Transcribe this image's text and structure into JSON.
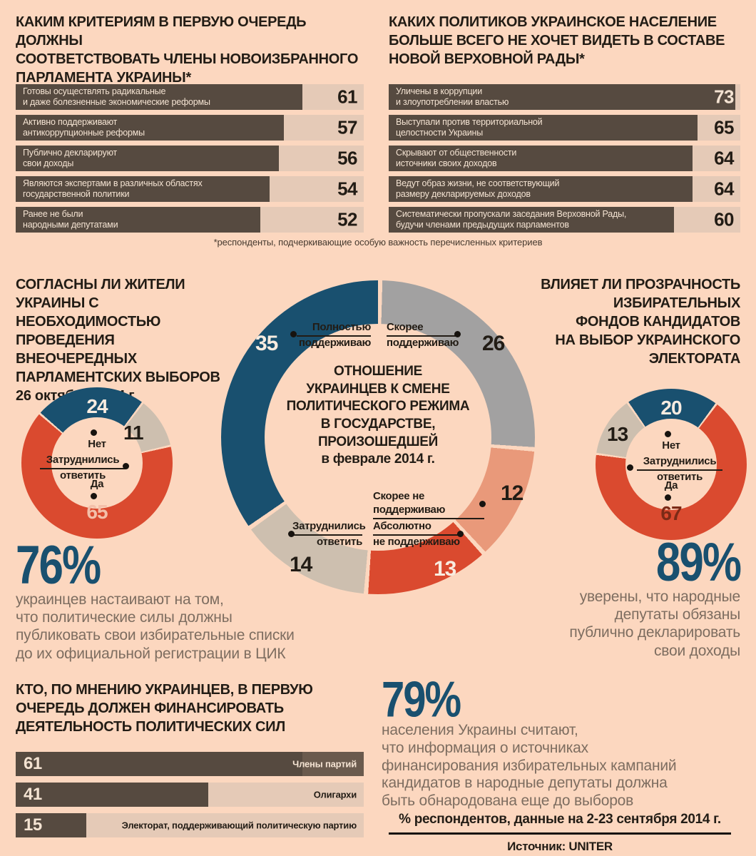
{
  "colors": {
    "background": "#fcd7bf",
    "bar_fill": "#564a40",
    "bar_track": "#e5cab7",
    "bar_remainder_dark": "#6a5a4d",
    "cream": "#f4e3d2",
    "text_dark": "#221c15",
    "blue": "#19506f",
    "red": "#da4a2f",
    "salmon": "#e9997a",
    "beige": "#cdbfaf",
    "gray": "#a2a1a1",
    "body_text": "#7d6d60",
    "pale_pink_num": "#f3bfa9",
    "maroon_num": "#7c2a16"
  },
  "chart_data": [
    {
      "type": "bar",
      "title": "КАКИМ КРИТЕРИЯМ В ПЕРВУЮ ОЧЕРЕДЬ ДОЛЖНЫ СООТВЕТСТВОВАТЬ ЧЛЕНЫ НОВОИЗБРАННОГО ПАРЛАМЕНТА УКРАИНЫ*",
      "categories": [
        "Готовы осуществлять радикальные и даже болезненные экономические реформы",
        "Активно поддерживают антикоррупционные реформы",
        "Публично декларируют свои доходы",
        "Являются экспертами в различных областях государственной политики",
        "Ранее не были народными депутатами"
      ],
      "values": [
        61,
        57,
        56,
        54,
        52
      ],
      "xlim": [
        0,
        74
      ],
      "unit": "% респондентов"
    },
    {
      "type": "bar",
      "title": "КАКИХ ПОЛИТИКОВ УКРАИНСКОЕ НАСЕЛЕНИЕ БОЛЬШЕ ВСЕГО НЕ ХОЧЕТ ВИДЕТЬ В СОСТАВЕ НОВОЙ ВЕРХОВНОЙ РАДЫ*",
      "categories": [
        "Уличены в коррупции и злоупотреблении властью",
        "Выступали против территориальной целостности Украины",
        "Скрывают от общественности источники своих доходов",
        "Ведут образ жизни, не соответствующий размеру декларируемых доходов",
        "Систематически пропускали заседания Верховной Рады, будучи членами предыдущих парламентов"
      ],
      "values": [
        73,
        65,
        64,
        64,
        60
      ],
      "xlim": [
        0,
        74
      ],
      "unit": "% респондентов"
    },
    {
      "type": "pie",
      "title": "СОГЛАСНЫ ЛИ ЖИТЕЛИ УКРАИНЫ С НЕОБХОДИМОСТЬЮ ПРОВЕДЕНИЯ ВНЕОЧЕРЕДНЫХ ПАРЛАМЕНТСКИХ ВЫБОРОВ 26 октября 2014 г.",
      "labels": [
        "Нет",
        "Затруднились ответить",
        "Да"
      ],
      "values": [
        24,
        11,
        65
      ]
    },
    {
      "type": "pie",
      "title": "ОТНОШЕНИЕ УКРАИНЦЕВ К СМЕНЕ ПОЛИТИЧЕСКОГО РЕЖИМА В ГОСУДАРСТВЕ, ПРОИЗОШЕДШЕЙ в феврале 2014 г.",
      "labels": [
        "Скорее поддерживаю",
        "Скорее не поддерживаю",
        "Абсолютно не поддерживаю",
        "Затруднились ответить",
        "Полностью поддерживаю"
      ],
      "values": [
        26,
        12,
        13,
        14,
        35
      ]
    },
    {
      "type": "pie",
      "title": "ВЛИЯЕТ ЛИ ПРОЗРАЧНОСТЬ ИЗБИРАТЕЛЬНЫХ ФОНДОВ КАНДИДАТОВ НА ВЫБОР УКРАИНСКОГО ЭЛЕКТОРАТА",
      "labels": [
        "Нет",
        "Да",
        "Затруднились ответить"
      ],
      "values": [
        20,
        67,
        13
      ]
    },
    {
      "type": "bar",
      "title": "КТО, ПО МНЕНИЮ УКРАИНЦЕВ, В ПЕРВУЮ ОЧЕРЕДЬ ДОЛЖЕН ФИНАНСИРОВАТЬ ДЕЯТЕЛЬНОСТЬ ПОЛИТИЧЕСКИХ СИЛ",
      "categories": [
        "Члены партий",
        "Олигархи",
        "Электорат, поддерживающий политическую партию"
      ],
      "values": [
        61,
        41,
        15
      ],
      "xlim": [
        0,
        74
      ],
      "unit": "% респондентов"
    }
  ],
  "top_left_chart": {
    "title_lines": [
      "КАКИМ КРИТЕРИЯМ В ПЕРВУЮ ОЧЕРЕДЬ ДОЛЖНЫ",
      "СООТВЕТСТВОВАТЬ ЧЛЕНЫ НОВОИЗБРАННОГО",
      "ПАРЛАМЕНТА УКРАИНЫ*"
    ],
    "max": 74,
    "variant": "top",
    "bars": [
      {
        "lines": [
          "Готовы осуществлять радикальные",
          "и даже болезненные экономические реформы"
        ],
        "value": 61
      },
      {
        "lines": [
          "Активно поддерживают",
          "антикоррупционные реформы"
        ],
        "value": 57
      },
      {
        "lines": [
          "Публично декларируют",
          "свои доходы"
        ],
        "value": 56
      },
      {
        "lines": [
          "Являются экспертами в различных областях",
          "государственной политики"
        ],
        "value": 54
      },
      {
        "lines": [
          "Ранее не были",
          "народными депутатами"
        ],
        "value": 52
      }
    ]
  },
  "top_right_chart": {
    "title_lines": [
      "КАКИХ ПОЛИТИКОВ УКРАИНСКОЕ НАСЕЛЕНИЕ",
      "БОЛЬШЕ ВСЕГО НЕ ХОЧЕТ ВИДЕТЬ В СОСТАВЕ",
      "НОВОЙ ВЕРХОВНОЙ РАДЫ*"
    ],
    "max": 74,
    "variant": "top",
    "bars": [
      {
        "lines": [
          "Уличены в коррупции",
          "и злоупотреблении властью"
        ],
        "value": 73
      },
      {
        "lines": [
          "Выступали против территориальной",
          "целостности Украины"
        ],
        "value": 65
      },
      {
        "lines": [
          "Скрывают от общественности",
          "источники своих доходов"
        ],
        "value": 64
      },
      {
        "lines": [
          "Ведут образ жизни, не соответствующий",
          "размеру декларируемых доходов"
        ],
        "value": 64
      },
      {
        "lines": [
          "Систематически пропускали заседания Верховной Рады,",
          "будучи членами предыдущих парламентов"
        ],
        "value": 60
      }
    ]
  },
  "criteria_footnote": "*респонденты, подчеркивающие особую важность перечисленных критериев",
  "left_donut": {
    "title_lines": [
      "СОГЛАСНЫ ЛИ ЖИТЕЛИ",
      "УКРАИНЫ С НЕОБХОДИМОСТЬЮ",
      "ПРОВЕДЕНИЯ ВНЕОЧЕРЕДНЫХ",
      "ПАРЛАМЕНТСКИХ ВЫБОРОВ"
    ],
    "date": "26 октября 2014 г.",
    "start": 310,
    "segments": [
      {
        "label": "Нет",
        "value": 24,
        "color": "#19506f"
      },
      {
        "label": "Затруднились ответить",
        "label_lines": [
          "Затруднились",
          "ответить"
        ],
        "value": 11,
        "color": "#cdbfaf"
      },
      {
        "label": "Да",
        "value": 65,
        "color": "#da4a2f"
      }
    ]
  },
  "center_donut": {
    "start": 0,
    "title_lines": [
      "ОТНОШЕНИЕ",
      "УКРАИНЦЕВ К СМЕНЕ",
      "ПОЛИТИЧЕСКОГО РЕЖИМА",
      "В ГОСУДАРСТВЕ,",
      "ПРОИЗОШЕДШЕЙ",
      "в феврале 2014 г."
    ],
    "segments": [
      {
        "label": "Скорее поддерживаю",
        "label_lines": [
          "Скорее",
          "поддерживаю"
        ],
        "value": 26,
        "color": "#a2a1a1"
      },
      {
        "label": "Скорее не поддерживаю",
        "label_lines": [
          "Скорее не поддерживаю"
        ],
        "value": 12,
        "color": "#e9997a"
      },
      {
        "label": "Абсолютно не поддерживаю",
        "label_lines": [
          "Абсолютно",
          "не поддерживаю"
        ],
        "value": 13,
        "color": "#da4a2f"
      },
      {
        "label": "Затруднились ответить",
        "label_lines": [
          "Затруднились",
          "ответить"
        ],
        "value": 14,
        "color": "#cdbfaf"
      },
      {
        "label": "Полностью поддерживаю",
        "label_lines": [
          "Полностью",
          "поддерживаю"
        ],
        "value": 35,
        "color": "#19506f"
      }
    ]
  },
  "right_donut": {
    "title_lines": [
      "ВЛИЯЕТ ЛИ ПРОЗРАЧНОСТЬ",
      "ИЗБИРАТЕЛЬНЫХ",
      "ФОНДОВ КАНДИДАТОВ",
      "НА ВЫБОР УКРАИНСКОГО",
      "ЭЛЕКТОРАТА"
    ],
    "start": 324,
    "segments": [
      {
        "label": "Нет",
        "value": 20,
        "color": "#19506f"
      },
      {
        "label": "Да",
        "value": 67,
        "color": "#da4a2f"
      },
      {
        "label": "Затруднились ответить",
        "label_lines": [
          "Затруднились",
          "ответить"
        ],
        "value": 13,
        "color": "#cdbfaf"
      }
    ]
  },
  "stat_76": {
    "value": "76%",
    "lines": [
      "украинцев настаивают на том,",
      "что политические силы должны",
      "публиковать свои избирательные списки",
      "до их официальной регистрации в ЦИК"
    ]
  },
  "stat_89": {
    "value": "89%",
    "lines": [
      "уверены, что народные",
      "депутаты обязаны",
      "публично декларировать",
      "свои доходы"
    ]
  },
  "bottom_chart": {
    "title_lines": [
      "КТО, ПО МНЕНИЮ УКРАИНЦЕВ, В ПЕРВУЮ",
      "ОЧЕРЕДЬ ДОЛЖЕН ФИНАНСИРОВАТЬ",
      "ДЕЯТЕЛЬНОСТЬ ПОЛИТИЧЕСКИХ СИЛ"
    ],
    "max": 74,
    "variant": "bottom",
    "bars": [
      {
        "label": "Члены партий",
        "value": 61,
        "dark_remainder": true
      },
      {
        "label": "Олигархи",
        "value": 41
      },
      {
        "label": "Электорат, поддерживающий политическую партию",
        "value": 15
      }
    ]
  },
  "stat_79": {
    "value": "79%",
    "lines": [
      "населения Украины считают,",
      "что информация о источниках",
      "финансирования избирательных кампаний",
      "кандидатов в народные депутаты должна",
      "быть обнародована еще до выборов"
    ]
  },
  "footer": {
    "note": "% респондентов, данные на 2-23 сентября 2014 г.",
    "source": "Источник: UNITER"
  }
}
